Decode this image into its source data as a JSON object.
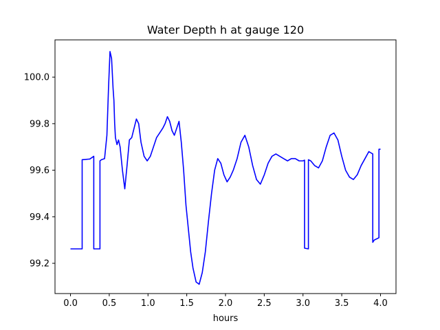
{
  "chart_data": {
    "type": "line",
    "title": "Water Depth h at gauge 120",
    "xlabel": "hours",
    "ylabel": "",
    "xlim": [
      -0.2,
      4.2
    ],
    "ylim": [
      99.07,
      100.16
    ],
    "grid": false,
    "x_ticks": [
      0.0,
      0.5,
      1.0,
      1.5,
      2.0,
      2.5,
      3.0,
      3.5,
      4.0
    ],
    "x_tick_labels": [
      "0.0",
      "0.5",
      "1.0",
      "1.5",
      "2.0",
      "2.5",
      "3.0",
      "3.5",
      "4.0"
    ],
    "y_ticks": [
      99.2,
      99.4,
      99.6,
      99.8,
      100.0
    ],
    "y_tick_labels": [
      "99.2",
      "99.4",
      "99.6",
      "99.8",
      "100.0"
    ],
    "series": [
      {
        "color": "#0000ff",
        "x": [
          0.0,
          0.15,
          0.15,
          0.25,
          0.3,
          0.3,
          0.38,
          0.38,
          0.38,
          0.38,
          0.4,
          0.44,
          0.47,
          0.49,
          0.51,
          0.53,
          0.55,
          0.56,
          0.57,
          0.58,
          0.6,
          0.62,
          0.64,
          0.67,
          0.7,
          0.73,
          0.76,
          0.79,
          0.82,
          0.85,
          0.88,
          0.91,
          0.95,
          0.99,
          1.03,
          1.07,
          1.11,
          1.15,
          1.19,
          1.22,
          1.25,
          1.28,
          1.31,
          1.34,
          1.37,
          1.4,
          1.43,
          1.46,
          1.49,
          1.52,
          1.55,
          1.58,
          1.62,
          1.66,
          1.7,
          1.74,
          1.78,
          1.82,
          1.86,
          1.9,
          1.94,
          1.98,
          2.02,
          2.06,
          2.1,
          2.15,
          2.2,
          2.25,
          2.3,
          2.35,
          2.4,
          2.45,
          2.5,
          2.55,
          2.6,
          2.65,
          2.7,
          2.75,
          2.8,
          2.85,
          2.9,
          2.95,
          3.0,
          3.02,
          3.02,
          3.07,
          3.07,
          3.1,
          3.15,
          3.2,
          3.25,
          3.3,
          3.35,
          3.4,
          3.45,
          3.5,
          3.55,
          3.6,
          3.65,
          3.7,
          3.75,
          3.8,
          3.85,
          3.9,
          3.9,
          3.92,
          3.98,
          3.98,
          4.0
        ],
        "y": [
          99.262,
          99.262,
          99.645,
          99.648,
          99.66,
          99.262,
          99.262,
          99.64,
          99.262,
          99.64,
          99.645,
          99.65,
          99.75,
          99.95,
          100.11,
          100.08,
          99.95,
          99.9,
          99.8,
          99.74,
          99.71,
          99.73,
          99.7,
          99.6,
          99.52,
          99.62,
          99.73,
          99.74,
          99.78,
          99.82,
          99.8,
          99.72,
          99.66,
          99.64,
          99.66,
          99.7,
          99.74,
          99.76,
          99.78,
          99.8,
          99.83,
          99.81,
          99.77,
          99.75,
          99.78,
          99.81,
          99.72,
          99.6,
          99.45,
          99.35,
          99.25,
          99.18,
          99.12,
          99.11,
          99.16,
          99.25,
          99.38,
          99.5,
          99.6,
          99.65,
          99.63,
          99.58,
          99.55,
          99.57,
          99.6,
          99.65,
          99.72,
          99.75,
          99.7,
          99.62,
          99.56,
          99.54,
          99.58,
          99.63,
          99.66,
          99.67,
          99.66,
          99.65,
          99.64,
          99.65,
          99.65,
          99.64,
          99.64,
          99.643,
          99.265,
          99.262,
          99.645,
          99.64,
          99.62,
          99.61,
          99.64,
          99.7,
          99.75,
          99.76,
          99.73,
          99.66,
          99.6,
          99.57,
          99.56,
          99.58,
          99.62,
          99.65,
          99.68,
          99.67,
          99.29,
          99.3,
          99.31,
          99.69,
          99.69
        ]
      }
    ]
  }
}
